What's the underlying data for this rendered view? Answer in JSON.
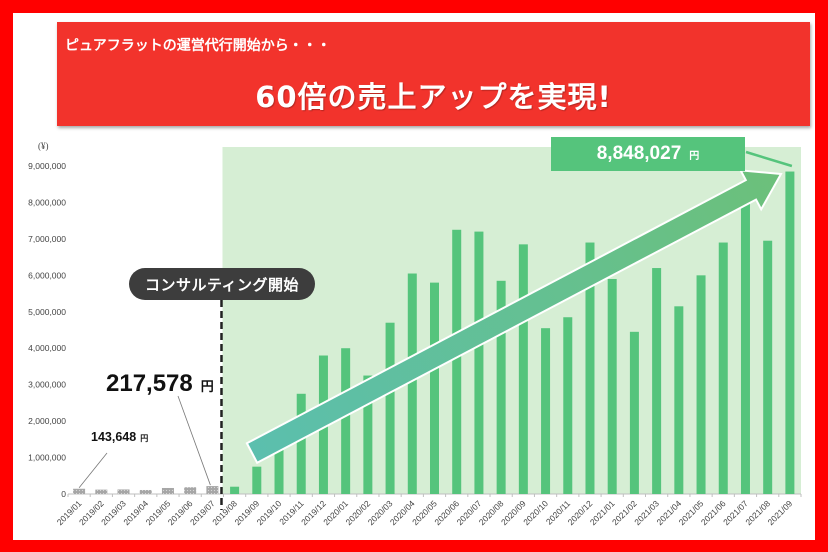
{
  "banner": {
    "subtitle": "ピュアフラットの運営代行開始から・・・",
    "headline": "60倍の売上アップを実現!"
  },
  "annotations": {
    "consulting_start": "コンサルティング開始",
    "first_month_value": "143,648",
    "pre_consulting_value": "217,578",
    "final_value": "8,848,027",
    "yen_unit": "円",
    "y_unit": "(¥)"
  },
  "colors": {
    "frame": "#ff0000",
    "banner": "#f2332c",
    "pre_bar": "#a6a6a6",
    "post_bar": "#55c47c",
    "highlight_area": "#d6eed4",
    "arrow_start": "#5bbfae",
    "arrow_end": "#6cc07a",
    "pill": "#3d3d3d"
  },
  "chart_data": {
    "type": "bar",
    "title": "60倍の売上アップを実現!",
    "xlabel": "",
    "ylabel": "(¥)",
    "ylim": [
      0,
      9000000
    ],
    "yticks": [
      0,
      1000000,
      2000000,
      3000000,
      4000000,
      5000000,
      6000000,
      7000000,
      8000000,
      9000000
    ],
    "ytick_labels": [
      "0",
      "1,000,000",
      "2,000,000",
      "3,000,000",
      "4,000,000",
      "5,000,000",
      "6,000,000",
      "7,000,000",
      "8,000,000",
      "9,000,000"
    ],
    "grid": false,
    "legend": null,
    "categories": [
      "2019/01",
      "2019/02",
      "2019/03",
      "2019/04",
      "2019/05",
      "2019/06",
      "2019/07",
      "2019/08",
      "2019/09",
      "2019/10",
      "2019/11",
      "2019/12",
      "2020/01",
      "2020/02",
      "2020/03",
      "2020/04",
      "2020/05",
      "2020/06",
      "2020/07",
      "2020/08",
      "2020/09",
      "2020/10",
      "2020/11",
      "2020/12",
      "2021/01",
      "2021/02",
      "2021/03",
      "2021/04",
      "2021/05",
      "2021/06",
      "2021/07",
      "2021/08",
      "2021/09"
    ],
    "values": [
      143648,
      120000,
      125000,
      110000,
      165000,
      185000,
      217578,
      200000,
      750000,
      1350000,
      2750000,
      3800000,
      4000000,
      3250000,
      4700000,
      6050000,
      5800000,
      7250000,
      7200000,
      5850000,
      6850000,
      4550000,
      4850000,
      6900000,
      5900000,
      4450000,
      6200000,
      5150000,
      6000000,
      6900000,
      8550000,
      6950000,
      8848027
    ],
    "series_split": {
      "pre_consulting": "2019/01-2019/07",
      "post_consulting": "2019/08-2021/09"
    },
    "annotations": [
      {
        "category": "2019/01",
        "text": "143,648 円"
      },
      {
        "category": "2019/07",
        "text": "217,578 円"
      },
      {
        "category": "2021/09",
        "text": "8,848,027 円"
      },
      {
        "between": "2019/07|2019/08",
        "text": "コンサルティング開始"
      }
    ]
  }
}
